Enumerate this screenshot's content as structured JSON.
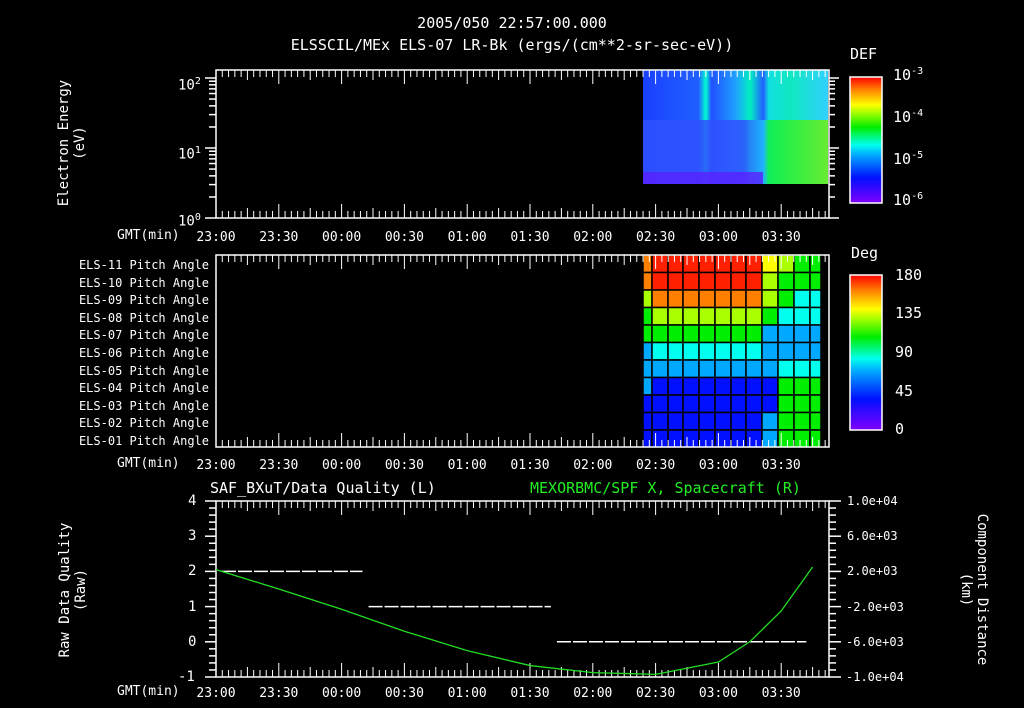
{
  "header": {
    "timestamp": "2005/050 22:57:00.000",
    "subtitle": "ELSSCIL/MEx ELS-07 LR-Bk  (ergs/(cm**2-sr-sec-eV))"
  },
  "colors": {
    "background": "#000000",
    "axis": "#ffffff",
    "green_trace": "#22dd22",
    "right_title": "#22ee22"
  },
  "panel1": {
    "ylabel_line1": "Electron Energy",
    "ylabel_line2": "(eV)",
    "yticks": [
      "10",
      "10",
      "10"
    ],
    "yexp": [
      "2",
      "1",
      "0"
    ],
    "xaxis_label": "GMT(min)",
    "colorbar": {
      "title": "DEF",
      "labels": [
        "10",
        "10",
        "10",
        "10"
      ],
      "exps": [
        "-3",
        "-4",
        "-5",
        "-6"
      ]
    }
  },
  "panel2": {
    "rows": [
      "ELS-11 Pitch Angle",
      "ELS-10 Pitch Angle",
      "ELS-09 Pitch Angle",
      "ELS-08 Pitch Angle",
      "ELS-07 Pitch Angle",
      "ELS-06 Pitch Angle",
      "ELS-05 Pitch Angle",
      "ELS-04 Pitch Angle",
      "ELS-03 Pitch Angle",
      "ELS-02 Pitch Angle",
      "ELS-01 Pitch Angle"
    ],
    "xaxis_label": "GMT(min)",
    "colorbar": {
      "title": "Deg",
      "labels": [
        "180",
        "135",
        "90",
        "45",
        "0"
      ]
    }
  },
  "panel3": {
    "left_title": "SAF_BXuT/Data Quality (L)",
    "right_title": "MEXORBMC/SPF X, Spacecraft (R)",
    "ylabel_line1": "Raw Data Quality",
    "ylabel_line2": "(Raw)",
    "yticks_left": [
      "4",
      "3",
      "2",
      "1",
      "0",
      "-1"
    ],
    "yticks_right": [
      "1.0e+04",
      "6.0e+03",
      "2.0e+03",
      "-2.0e+03",
      "-6.0e+03",
      "-1.0e+04"
    ],
    "ylabel_right_line1": "Component Distance",
    "ylabel_right_line2": "(km)",
    "xaxis_label": "GMT(min)"
  },
  "time_ticks": [
    "23:00",
    "23:30",
    "00:00",
    "00:30",
    "01:00",
    "01:30",
    "02:00",
    "02:30",
    "03:00",
    "03:30"
  ],
  "chart_data": [
    {
      "type": "heatmap",
      "title": "ELSSCIL/MEx ELS-07 LR-Bk (ergs/(cm**2-sr-sec-eV))",
      "xlabel": "GMT(min)",
      "ylabel": "Electron Energy (eV)",
      "x_ticks": [
        "23:00",
        "23:30",
        "00:00",
        "00:30",
        "01:00",
        "01:30",
        "02:00",
        "02:30",
        "03:00",
        "03:30"
      ],
      "y_scale": "log",
      "ylim": [
        1,
        150
      ],
      "colorbar": {
        "label": "DEF",
        "scale": "log",
        "range": [
          1e-06,
          0.001
        ]
      },
      "data_start": "02:22",
      "data_end": "03:45",
      "notes": "Data only from ~02:22 to ~03:45; mostly blue/cyan (1e-6 to 1e-5), green bands near 02:47, 03:05, and enhanced green (~1e-4) after ~03:27 at 4-30 eV; lower cutoff ~4 eV"
    },
    {
      "type": "heatmap",
      "title": "Pitch Angle per ELS anode",
      "xlabel": "GMT(min)",
      "categories": [
        "ELS-11",
        "ELS-10",
        "ELS-09",
        "ELS-08",
        "ELS-07",
        "ELS-06",
        "ELS-05",
        "ELS-04",
        "ELS-03",
        "ELS-02",
        "ELS-01"
      ],
      "colorbar": {
        "label": "Deg",
        "range": [
          0,
          180
        ],
        "ticks": [
          0,
          45,
          90,
          135,
          180
        ]
      },
      "data_start": "02:22",
      "data_end": "03:42",
      "approx_values_deg_at_02:45_to_03:10": [
        165,
        170,
        145,
        120,
        100,
        75,
        55,
        35,
        15,
        15,
        25
      ],
      "approx_values_deg_at_03:35": [
        100,
        90,
        80,
        70,
        60,
        60,
        75,
        85,
        95,
        100,
        105
      ]
    },
    {
      "type": "line",
      "title": "SAF_BXuT/Data Quality (L) & MEXORBMC/SPF X, Spacecraft (R)",
      "xlabel": "GMT(min)",
      "x": [
        "22:57",
        "00:10",
        "00:11",
        "01:40",
        "01:41",
        "03:45"
      ],
      "series": [
        {
          "name": "Data Quality (L)",
          "axis": "left",
          "ylim": [
            -1,
            4
          ],
          "segments": [
            {
              "from": "23:00",
              "to": "00:10",
              "value": 2
            },
            {
              "from": "00:10",
              "to": "01:40",
              "value": 1
            },
            {
              "from": "01:40",
              "to": "03:42",
              "value": 0
            }
          ]
        },
        {
          "name": "SPF X Spacecraft (R)",
          "axis": "right",
          "ylim": [
            -10000,
            10000
          ],
          "units": "km",
          "x": [
            "22:57",
            "23:30",
            "00:00",
            "00:30",
            "01:00",
            "01:30",
            "02:00",
            "02:30",
            "03:00",
            "03:15",
            "03:30",
            "03:45"
          ],
          "values": [
            2200,
            0,
            -2300,
            -4800,
            -7000,
            -8700,
            -9500,
            -9700,
            -8300,
            -6000,
            -2500,
            2500
          ]
        }
      ]
    }
  ]
}
